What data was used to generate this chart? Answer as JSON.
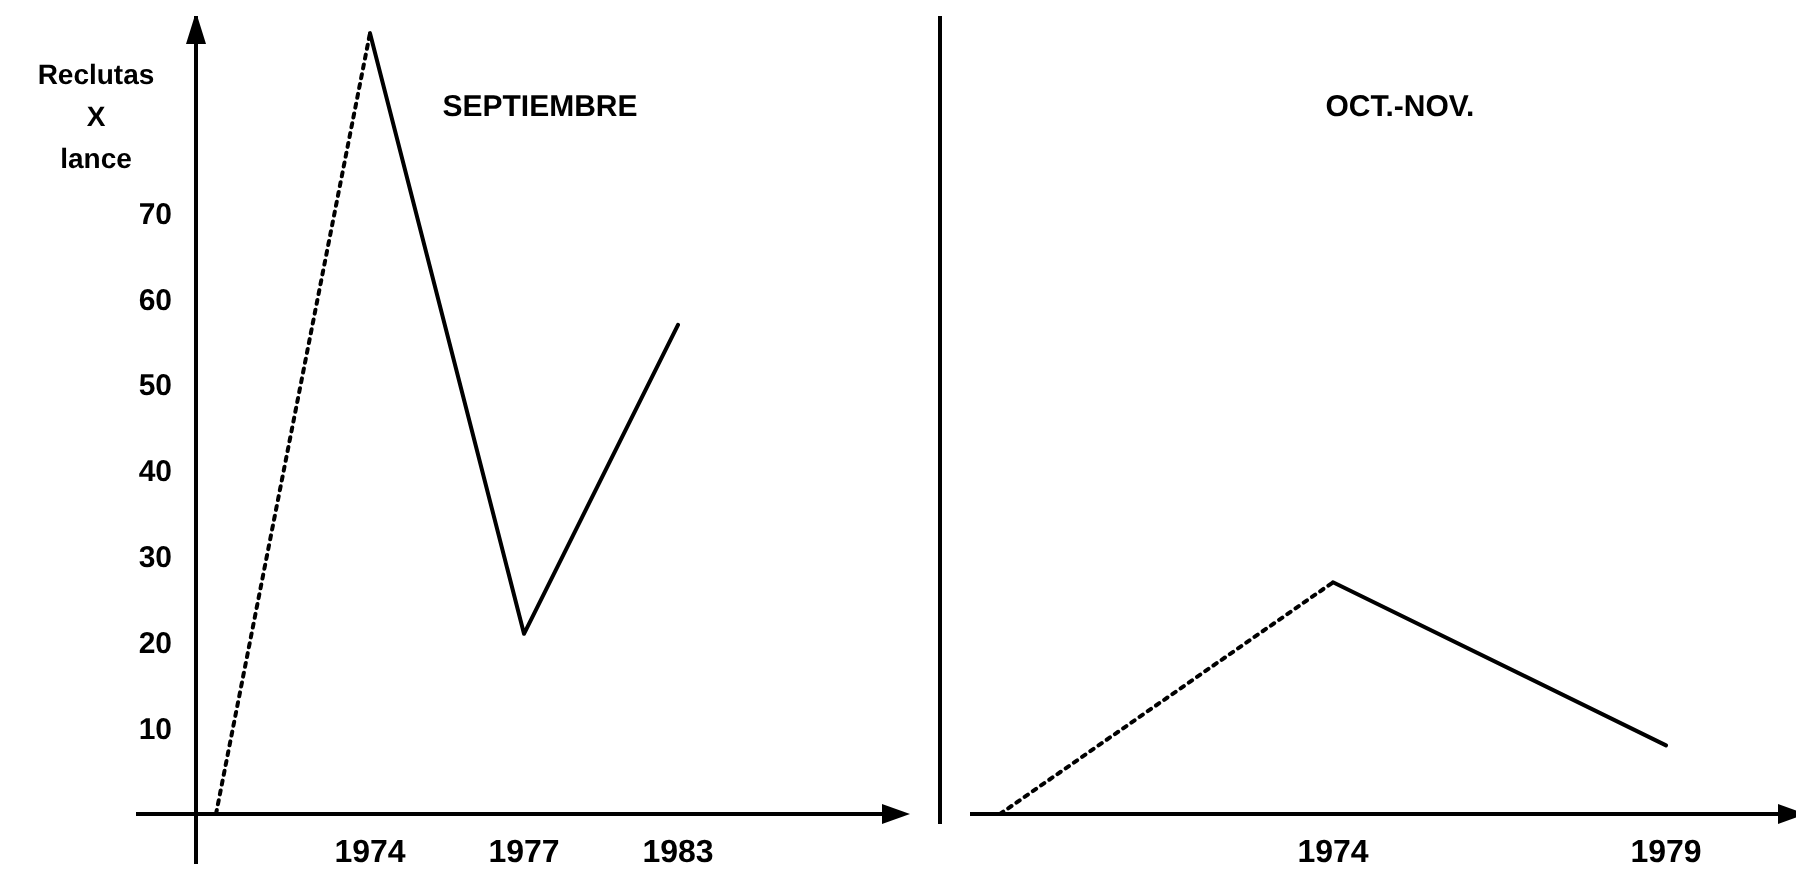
{
  "chart_data": [
    {
      "type": "line",
      "title": "SEPTIEMBRE",
      "ylabel": "Reclutas X lance",
      "categories": [
        null,
        "1974",
        "1977",
        "1983"
      ],
      "ylim": [
        0,
        93
      ],
      "yticks": [
        10,
        20,
        30,
        40,
        50,
        60,
        70
      ],
      "marker": "none",
      "series": [
        {
          "color": "#000000",
          "line_style": "dotted",
          "values": [
            0,
            91,
            null,
            null
          ]
        },
        {
          "color": "#000000",
          "line_style": "solid",
          "values": [
            null,
            91,
            21,
            57
          ]
        }
      ]
    },
    {
      "type": "line",
      "title": "OCT.-NOV.",
      "categories": [
        null,
        "1974",
        "1979"
      ],
      "ylim": [
        0,
        93
      ],
      "tick_labels": "x",
      "marker": "none",
      "series": [
        {
          "color": "#000000",
          "line_style": "dotted",
          "values": [
            0,
            27,
            null
          ]
        },
        {
          "color": "#000000",
          "line_style": "solid",
          "values": [
            null,
            27,
            8
          ]
        }
      ]
    }
  ]
}
